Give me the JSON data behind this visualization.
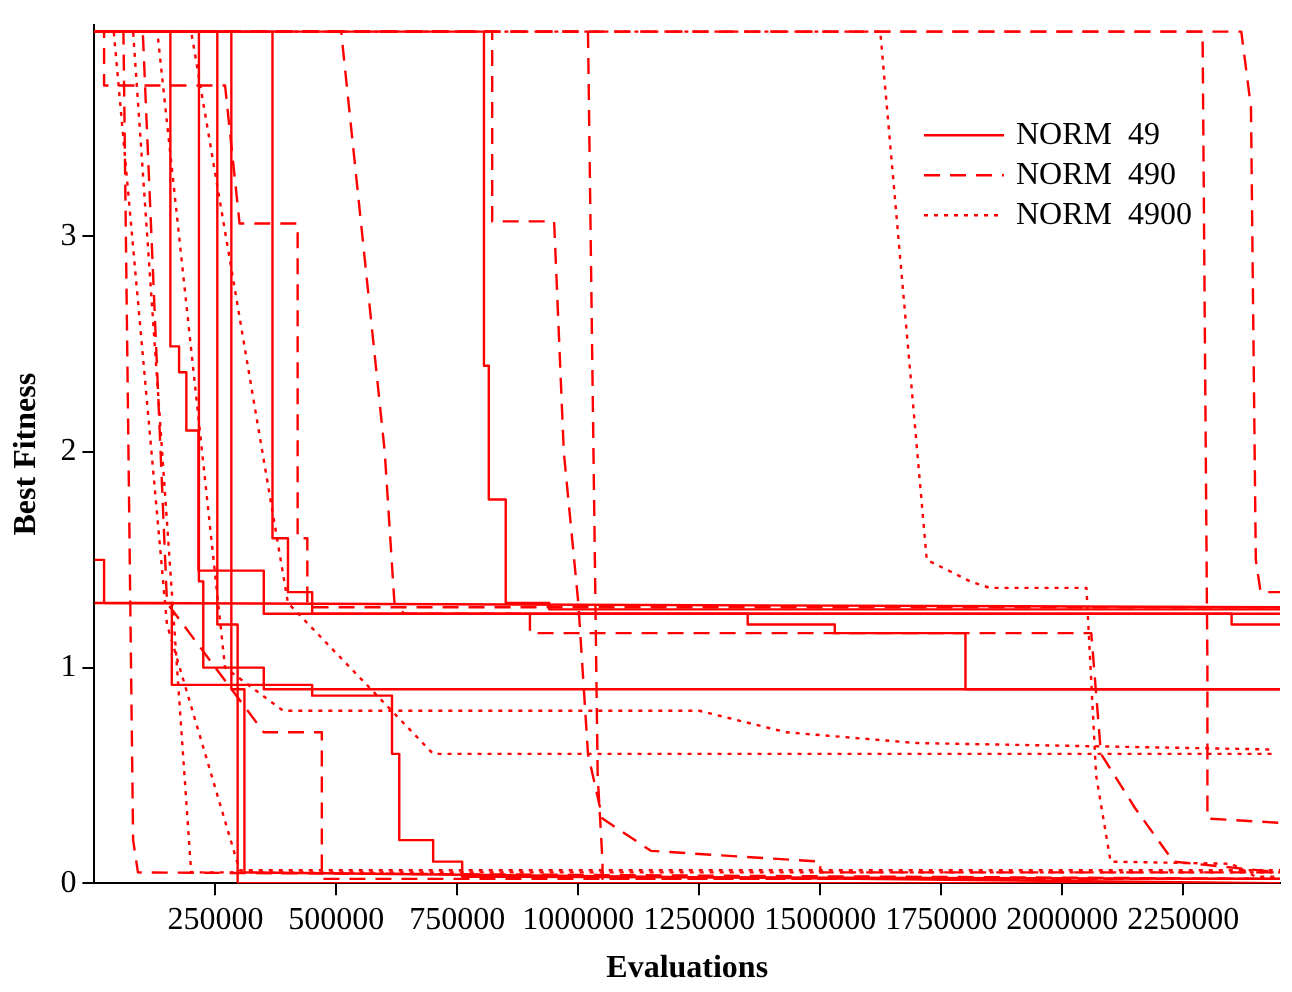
{
  "chart_data": {
    "type": "line",
    "xlabel": "Evaluations",
    "ylabel": "Best Fitness",
    "xlim": [
      0,
      2450000
    ],
    "xticks": [
      250000,
      500000,
      750000,
      1000000,
      1250000,
      1500000,
      1750000,
      2000000,
      2250000
    ],
    "ylim": [
      0,
      3.98
    ],
    "yticks": [
      0,
      1,
      2,
      3
    ],
    "grid": false,
    "legend": "top right",
    "marker": "none",
    "series": [
      {
        "name": "NORM  49",
        "color": "#ff0000",
        "line_style": "solid",
        "x": [
          0,
          20000,
          20000,
          2450000
        ],
        "values": [
          1.5,
          1.5,
          1.3,
          1.28
        ]
      },
      {
        "color": "#ff0000",
        "line_style": "solid",
        "x": [
          0,
          157000,
          157000,
          175000,
          175000,
          190000,
          190000,
          215000,
          215000,
          350000,
          350000,
          2350000,
          2350000,
          2450000
        ],
        "values": [
          3.95,
          3.95,
          2.49,
          2.49,
          2.37,
          2.37,
          2.1,
          2.1,
          1.45,
          1.45,
          1.25,
          1.25,
          1.2,
          1.2
        ]
      },
      {
        "color": "#ff0000",
        "line_style": "solid",
        "x": [
          0,
          216000,
          216000,
          225000,
          225000,
          350000,
          350000,
          2450000
        ],
        "values": [
          3.95,
          3.95,
          1.4,
          1.4,
          1.0,
          1.0,
          0.9,
          0.9
        ]
      },
      {
        "color": "#ff0000",
        "line_style": "solid",
        "x": [
          0,
          254000,
          254000,
          296000,
          296000,
          2450000
        ],
        "values": [
          3.95,
          3.95,
          1.2,
          1.2,
          0.0,
          0.0
        ]
      },
      {
        "color": "#ff0000",
        "line_style": "solid",
        "x": [
          0,
          283000,
          283000,
          310000,
          310000,
          2450000
        ],
        "values": [
          3.95,
          3.95,
          0.9,
          0.9,
          0.05,
          0.0
        ]
      },
      {
        "color": "#ff0000",
        "line_style": "solid",
        "x": [
          0,
          368000,
          368000,
          400000,
          400000,
          450000,
          450000,
          2450000
        ],
        "values": [
          3.95,
          3.95,
          1.6,
          1.6,
          1.35,
          1.35,
          1.25,
          1.25
        ]
      },
      {
        "color": "#ff0000",
        "line_style": "solid",
        "x": [
          0,
          805000,
          805000,
          815000,
          815000,
          850000,
          850000,
          940000,
          940000,
          2450000
        ],
        "values": [
          3.95,
          3.95,
          2.4,
          2.4,
          1.78,
          1.78,
          1.3,
          1.3,
          1.27,
          1.27
        ]
      },
      {
        "color": "#ff0000",
        "line_style": "solid",
        "x": [
          0,
          160000,
          160000,
          450000,
          450000,
          615000,
          615000,
          630000,
          630000,
          700000,
          700000,
          760000,
          760000,
          2450000
        ],
        "values": [
          1.3,
          1.3,
          0.92,
          0.92,
          0.87,
          0.87,
          0.6,
          0.6,
          0.2,
          0.2,
          0.1,
          0.1,
          0.03,
          0.02
        ]
      },
      {
        "color": "#ff0000",
        "line_style": "solid",
        "x": [
          1000000,
          1350000,
          1350000,
          1530000,
          1530000,
          1800000,
          1800000,
          2450000
        ],
        "values": [
          1.25,
          1.25,
          1.2,
          1.2,
          1.16,
          1.16,
          0.9,
          0.9
        ]
      },
      {
        "name": "NORM  490",
        "color": "#ff0000",
        "line_style": "dashed",
        "x": [
          0,
          20000,
          20000,
          270000,
          300000,
          300000,
          420000,
          420000,
          440000,
          440000,
          2450000
        ],
        "values": [
          3.95,
          3.95,
          3.7,
          3.7,
          3.06,
          3.06,
          3.06,
          1.6,
          1.6,
          1.28,
          1.28
        ]
      },
      {
        "color": "#ff0000",
        "line_style": "dashed",
        "x": [
          0,
          510000,
          600000,
          620000,
          640000,
          900000,
          900000,
          2060000,
          2080000,
          2080000,
          2150000,
          2150000,
          2230000,
          2230000,
          2450000
        ],
        "values": [
          3.95,
          3.95,
          2.0,
          1.3,
          1.25,
          1.25,
          1.16,
          1.16,
          0.6,
          0.6,
          0.35,
          0.35,
          0.1,
          0.1,
          0.05
        ]
      },
      {
        "color": "#ff0000",
        "line_style": "dashed",
        "x": [
          0,
          822000,
          822000,
          950000,
          970000,
          1000000,
          1020000,
          1050000,
          1050000,
          1150000,
          1150000,
          1500000,
          1500000,
          2450000
        ],
        "values": [
          3.95,
          3.95,
          3.07,
          3.07,
          2.0,
          1.3,
          0.6,
          0.3,
          0.3,
          0.15,
          0.15,
          0.1,
          0.05,
          0.05
        ]
      },
      {
        "color": "#ff0000",
        "line_style": "dashed",
        "x": [
          0,
          2290000,
          2300000,
          2300000,
          2450000
        ],
        "values": [
          3.95,
          3.95,
          1.0,
          0.3,
          0.28
        ]
      },
      {
        "color": "#ff0000",
        "line_style": "dashed",
        "x": [
          0,
          2370000,
          2390000,
          2400000,
          2410000,
          2450000
        ],
        "values": [
          3.95,
          3.95,
          3.6,
          1.5,
          1.35,
          1.35
        ]
      },
      {
        "color": "#ff0000",
        "line_style": "dashed",
        "x": [
          0,
          60000,
          80000,
          90000,
          2450000
        ],
        "values": [
          3.95,
          3.95,
          0.2,
          0.05,
          0.02
        ]
      },
      {
        "color": "#ff0000",
        "line_style": "dashed",
        "x": [
          0,
          100000,
          150000,
          250000,
          350000,
          350000,
          470000,
          470000,
          2450000
        ],
        "values": [
          3.95,
          3.95,
          1.3,
          1.0,
          0.7,
          0.7,
          0.7,
          0.02,
          0.02
        ]
      },
      {
        "color": "#ff0000",
        "line_style": "dashed",
        "x": [
          0,
          1020000,
          1040000,
          1050000,
          1050000,
          2450000
        ],
        "values": [
          3.95,
          3.95,
          0.5,
          0.1,
          0.02,
          0.02
        ]
      },
      {
        "name": "NORM  4900",
        "color": "#ff0000",
        "line_style": "dotted",
        "x": [
          0,
          1624000,
          1720000,
          1720000,
          1810000,
          1850000,
          2050000,
          2070000,
          2100000,
          2350000,
          2400000,
          2450000
        ],
        "values": [
          3.95,
          3.95,
          1.5,
          1.5,
          1.4,
          1.37,
          1.37,
          0.5,
          0.1,
          0.09,
          0.03,
          0.03
        ]
      },
      {
        "color": "#ff0000",
        "line_style": "dotted",
        "x": [
          0,
          80000,
          200000,
          2450000
        ],
        "values": [
          3.95,
          3.95,
          0.05,
          0.05
        ]
      },
      {
        "color": "#ff0000",
        "line_style": "dotted",
        "x": [
          0,
          130000,
          270000,
          390000,
          1250000,
          1430000,
          1700000,
          2440000
        ],
        "values": [
          3.95,
          3.95,
          1.0,
          0.8,
          0.8,
          0.7,
          0.65,
          0.62
        ]
      },
      {
        "color": "#ff0000",
        "line_style": "dotted",
        "x": [
          0,
          200000,
          400000,
          700000,
          2440000
        ],
        "values": [
          3.95,
          3.95,
          1.3,
          0.6,
          0.6
        ]
      },
      {
        "color": "#ff0000",
        "line_style": "dotted",
        "x": [
          0,
          40000,
          150000,
          300000,
          2450000
        ],
        "values": [
          3.95,
          3.95,
          1.2,
          0.06,
          0.06
        ]
      }
    ]
  }
}
